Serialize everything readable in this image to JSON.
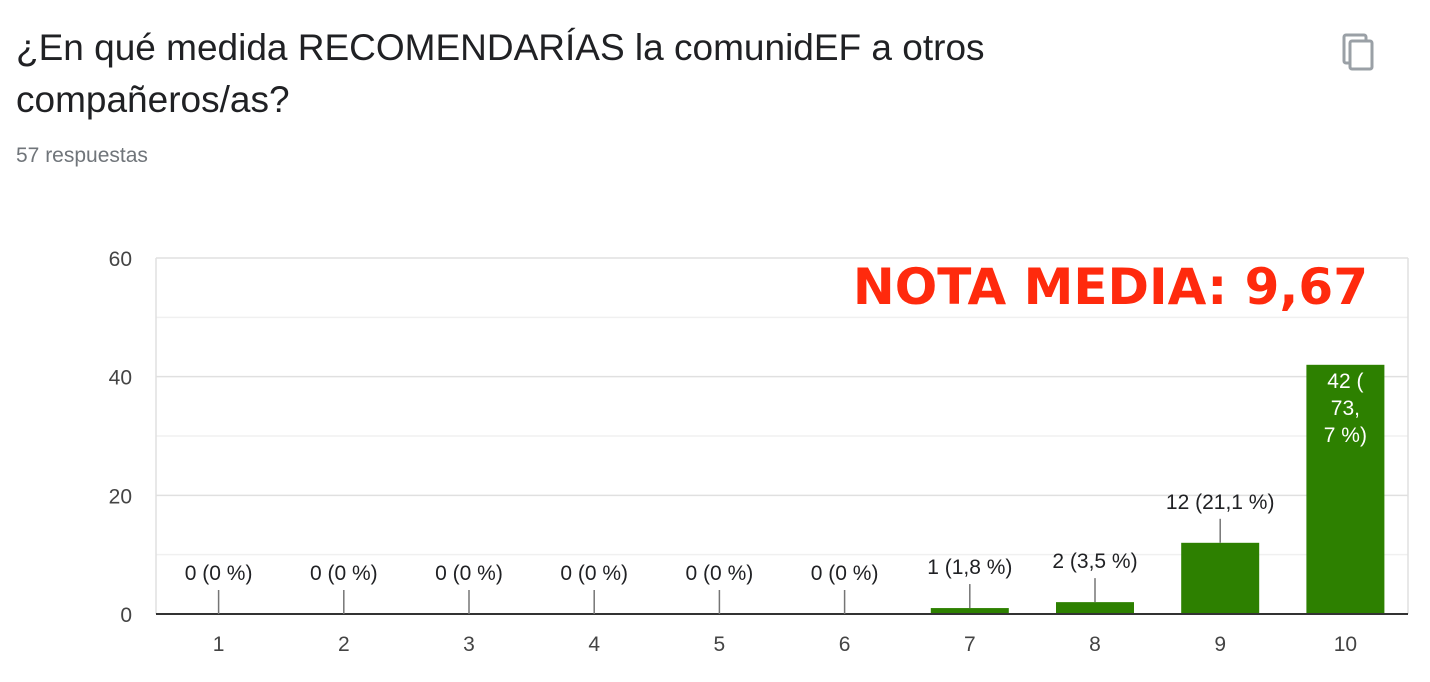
{
  "header": {
    "title": "¿En qué medida RECOMENDARÍAS la comunidEF a otros compañeros/as?",
    "responses": "57 respuestas",
    "copy_icon": "copy-icon"
  },
  "annotation": {
    "text": "NOTA MEDIA: 9,67",
    "color": "#ff2a0d"
  },
  "chart_data": {
    "type": "bar",
    "categories": [
      "1",
      "2",
      "3",
      "4",
      "5",
      "6",
      "7",
      "8",
      "9",
      "10"
    ],
    "values": [
      0,
      0,
      0,
      0,
      0,
      0,
      1,
      2,
      12,
      42
    ],
    "data_labels": [
      [
        "0 (0 %)"
      ],
      [
        "0 (0 %)"
      ],
      [
        "0 (0 %)"
      ],
      [
        "0 (0 %)"
      ],
      [
        "0 (0 %)"
      ],
      [
        "0 (0 %)"
      ],
      [
        "1 (1,8 %)"
      ],
      [
        "2 (3,5 %)"
      ],
      [
        "12 (21,1 %)"
      ],
      [
        "42 (",
        "73,",
        "7 %)"
      ]
    ],
    "ylim": [
      0,
      60
    ],
    "yticks": [
      0,
      20,
      40,
      60
    ],
    "grid": true,
    "bar_color": "#2d8000",
    "title": "",
    "xlabel": "",
    "ylabel": ""
  }
}
